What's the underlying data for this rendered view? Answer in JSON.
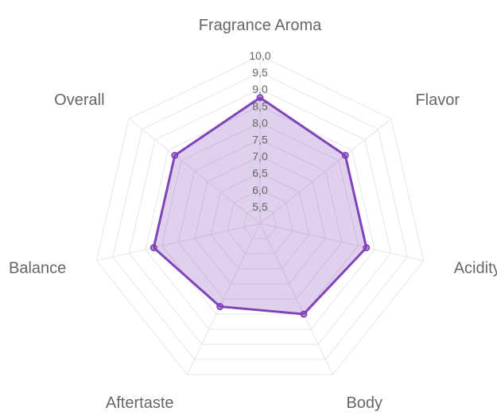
{
  "chart_data": {
    "type": "radar",
    "axes": [
      "Fragrance Aroma",
      "Flavor",
      "Acidity",
      "Body",
      "Aftertaste",
      "Balance",
      "Overall"
    ],
    "series": [
      {
        "values": [
          8.75,
          8.25,
          8.25,
          8.0,
          7.75,
          8.25,
          8.25
        ]
      }
    ],
    "rlim": [
      5.0,
      10.0
    ],
    "r_ticks": [
      "5,5",
      "6,0",
      "6,5",
      "7,0",
      "7,5",
      "8,0",
      "8,5",
      "9,0",
      "9,5",
      "10,0"
    ],
    "grid": true,
    "legend": "none",
    "colors": {
      "line": "#8043b9",
      "fill": "rgba(128,67,185,0.25)",
      "grid": "#e6e6e6",
      "text": "#666666"
    }
  }
}
